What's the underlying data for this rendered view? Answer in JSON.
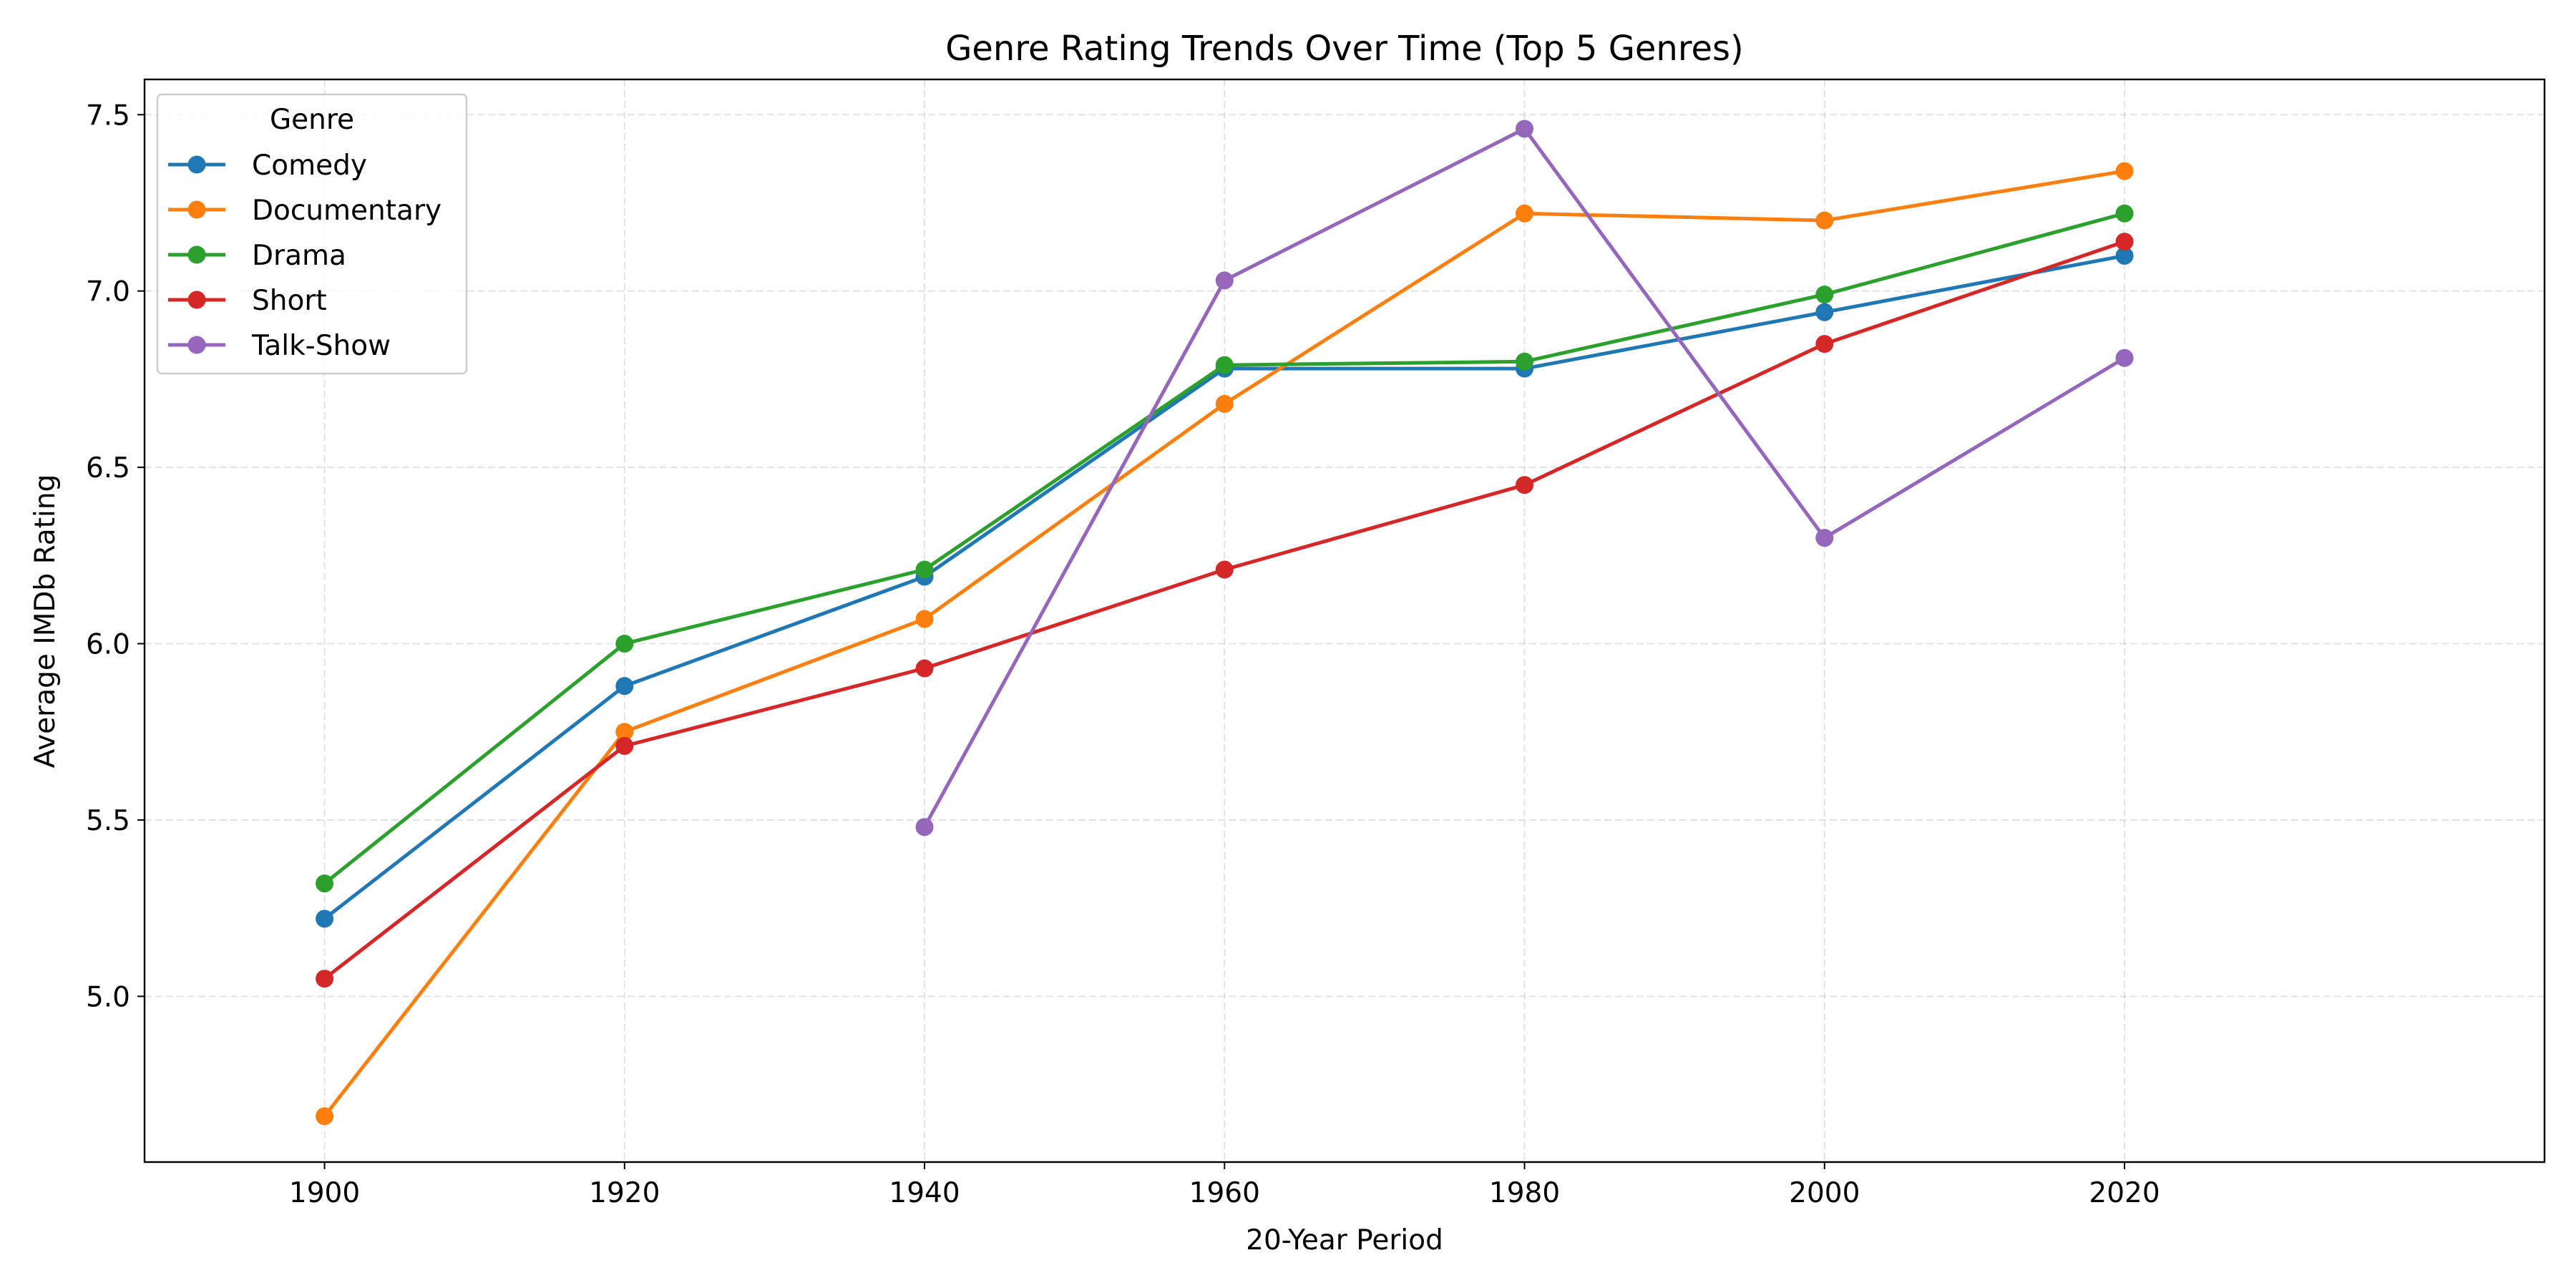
{
  "chart_data": {
    "type": "line",
    "title": "Genre Rating Trends Over Time (Top 5 Genres)",
    "xlabel": "20-Year Period",
    "ylabel": "Average IMDb Rating",
    "xlim": [
      1888,
      2048
    ],
    "ylim": [
      4.53,
      7.6
    ],
    "x_ticks": [
      1900,
      1920,
      1940,
      1960,
      1980,
      2000,
      2020
    ],
    "y_ticks": [
      5.0,
      5.5,
      6.0,
      6.5,
      7.0,
      7.5
    ],
    "grid": true,
    "legend": {
      "title": "Genre",
      "position": "top-left"
    },
    "series": [
      {
        "name": "Comedy",
        "color": "#1f77b4",
        "points": [
          [
            1900,
            5.22
          ],
          [
            1920,
            5.88
          ],
          [
            1940,
            6.19
          ],
          [
            1960,
            6.78
          ],
          [
            1980,
            6.78
          ],
          [
            2000,
            6.94
          ],
          [
            2020,
            7.1
          ]
        ]
      },
      {
        "name": "Documentary",
        "color": "#ff7f0e",
        "points": [
          [
            1900,
            4.66
          ],
          [
            1920,
            5.75
          ],
          [
            1940,
            6.07
          ],
          [
            1960,
            6.68
          ],
          [
            1980,
            7.22
          ],
          [
            2000,
            7.2
          ],
          [
            2020,
            7.34
          ]
        ]
      },
      {
        "name": "Drama",
        "color": "#2ca02c",
        "points": [
          [
            1900,
            5.32
          ],
          [
            1920,
            6.0
          ],
          [
            1940,
            6.21
          ],
          [
            1960,
            6.79
          ],
          [
            1980,
            6.8
          ],
          [
            2000,
            6.99
          ],
          [
            2020,
            7.22
          ]
        ]
      },
      {
        "name": "Short",
        "color": "#d62728",
        "points": [
          [
            1900,
            5.05
          ],
          [
            1920,
            5.71
          ],
          [
            1940,
            5.93
          ],
          [
            1960,
            6.21
          ],
          [
            1980,
            6.45
          ],
          [
            2000,
            6.85
          ],
          [
            2020,
            7.14
          ]
        ]
      },
      {
        "name": "Talk-Show",
        "color": "#9467bd",
        "points": [
          [
            1940,
            5.48
          ],
          [
            1960,
            7.03
          ],
          [
            1980,
            7.46
          ],
          [
            2000,
            6.3
          ],
          [
            2020,
            6.81
          ]
        ]
      }
    ]
  }
}
